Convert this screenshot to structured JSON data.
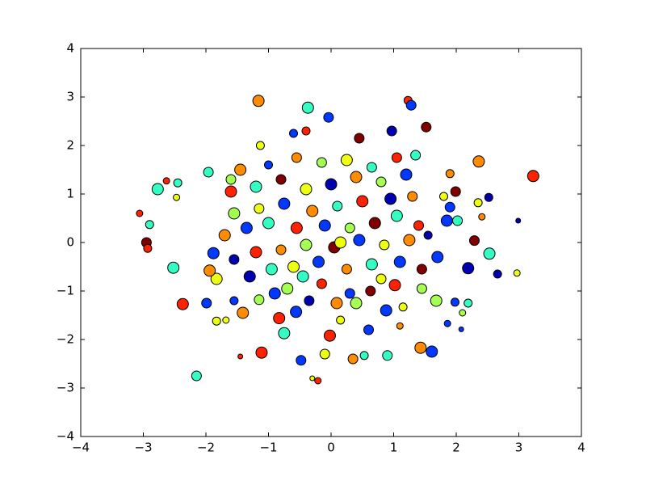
{
  "chart_data": {
    "type": "scatter",
    "x": [
      3.23,
      2.36,
      -1.16,
      -0.37,
      -0.04,
      1.23,
      1.28,
      1.52,
      -2.15,
      -0.21,
      -2.37,
      -2.52,
      -2.77,
      -3.06,
      -2.95,
      -2.93,
      -2.9,
      -2.63,
      -2.47,
      -2.45,
      2.97,
      2.66,
      2.53,
      2.19,
      1.61,
      1.43,
      -1.11,
      0.53,
      0.9,
      0.35,
      -0.48,
      -0.1,
      -1.83,
      -1.68,
      -1.99,
      -1.83,
      -1.88,
      -1.94,
      -1.96,
      2.99,
      2.02,
      1.85,
      1.9,
      1.99,
      1.9,
      1.8,
      2.29,
      2.41,
      2.52,
      2.35,
      -0.02,
      0.6,
      0.15,
      -0.83,
      -0.75,
      1.15,
      1.1,
      1.98,
      2.1,
      2.19,
      1.86,
      2.08,
      1.68,
      0.88,
      -1.45,
      -1.55,
      -1.41,
      -0.3,
      -0.56,
      0.09,
      -0.35,
      0.3,
      -1.15,
      -0.7,
      1.45,
      1.02,
      0.63,
      -0.15,
      -1.3,
      -0.95,
      -0.6,
      -0.2,
      0.25,
      0.65,
      1.1,
      1.45,
      1.7,
      -1.55,
      -1.2,
      -0.8,
      -0.4,
      0.05,
      0.45,
      0.85,
      1.25,
      1.55,
      -1.7,
      -1.35,
      -1.0,
      -0.55,
      -0.1,
      0.3,
      0.7,
      1.05,
      1.4,
      -1.55,
      -1.15,
      -0.75,
      -0.3,
      0.1,
      0.5,
      0.95,
      1.3,
      -1.6,
      -1.2,
      -0.8,
      -0.4,
      0.0,
      0.4,
      0.8,
      1.2,
      -1.45,
      -1.0,
      -0.55,
      -0.15,
      0.25,
      0.65,
      1.05,
      -1.13,
      -0.6,
      -0.4,
      0.45,
      0.97,
      1.35,
      -1.6,
      0.8,
      -0.45,
      0.15,
      -0.9,
      0.4
    ],
    "y": [
      1.37,
      1.67,
      2.92,
      2.78,
      2.58,
      2.93,
      2.83,
      2.38,
      -2.75,
      -2.85,
      -1.27,
      -0.52,
      1.1,
      0.6,
      0.0,
      -0.12,
      0.37,
      1.27,
      0.93,
      1.23,
      -0.63,
      -0.65,
      -0.23,
      -0.53,
      -2.25,
      -2.17,
      -2.27,
      -2.33,
      -2.33,
      -2.4,
      -2.43,
      -2.3,
      -1.62,
      -1.6,
      -1.25,
      -0.75,
      -0.22,
      -0.58,
      1.45,
      0.45,
      0.45,
      0.45,
      0.73,
      1.05,
      1.42,
      0.95,
      0.04,
      0.53,
      0.93,
      0.82,
      -1.92,
      -1.8,
      -1.6,
      -1.56,
      -1.87,
      -1.33,
      -1.72,
      -1.23,
      -1.45,
      -1.25,
      -1.67,
      -1.79,
      -1.2,
      -1.4,
      -2.35,
      -1.2,
      -1.45,
      -2.8,
      -1.43,
      -1.25,
      -1.2,
      -1.05,
      -1.18,
      -0.95,
      -0.95,
      -0.88,
      -1.0,
      -0.85,
      -0.7,
      -0.55,
      -0.5,
      -0.4,
      -0.55,
      -0.45,
      -0.4,
      -0.55,
      -0.3,
      -0.35,
      -0.2,
      -0.15,
      -0.05,
      -0.1,
      0.05,
      -0.05,
      0.05,
      0.15,
      0.15,
      0.3,
      0.4,
      0.3,
      0.35,
      0.3,
      0.4,
      0.55,
      0.35,
      0.6,
      0.7,
      0.8,
      0.65,
      0.75,
      0.85,
      0.9,
      0.95,
      1.05,
      1.15,
      1.3,
      1.1,
      1.2,
      1.35,
      1.25,
      1.4,
      1.5,
      1.6,
      1.75,
      1.65,
      1.7,
      1.55,
      1.75,
      2.0,
      2.25,
      2.3,
      2.15,
      2.3,
      1.8,
      1.3,
      -0.75,
      -0.7,
      0.0,
      -1.05,
      -1.25
    ],
    "sizes": [
      7,
      7,
      7,
      7,
      6,
      5,
      6,
      6,
      6,
      4,
      7,
      7,
      7,
      4,
      6,
      5,
      5,
      4,
      4,
      5,
      4,
      5,
      7,
      7,
      7,
      7,
      7,
      5,
      6,
      6,
      6,
      6,
      5,
      4,
      6,
      7,
      7,
      7,
      6,
      3,
      6,
      7,
      6,
      6,
      5,
      5,
      6,
      4,
      5,
      5,
      7,
      6,
      5,
      7,
      7,
      5,
      4,
      5,
      4,
      5,
      4,
      3,
      7,
      7,
      3,
      5,
      7,
      3,
      7,
      7,
      6,
      6,
      6,
      7,
      6,
      7,
      6,
      6,
      7,
      7,
      7,
      7,
      6,
      7,
      7,
      6,
      7,
      6,
      7,
      6,
      7,
      7,
      7,
      6,
      7,
      5,
      7,
      7,
      7,
      7,
      7,
      6,
      7,
      7,
      6,
      7,
      6,
      7,
      7,
      6,
      7,
      7,
      6,
      7,
      7,
      6,
      7,
      7,
      7,
      6,
      7,
      7,
      5,
      6,
      6,
      7,
      6,
      6,
      5,
      5,
      5,
      6,
      6,
      6,
      6,
      6,
      7,
      7,
      7,
      7
    ],
    "colors": [
      "#ff2200",
      "#ff8c00",
      "#ff8c00",
      "#33ffc4",
      "#0038ff",
      "#ff2200",
      "#0038ff",
      "#800000",
      "#33ffc4",
      "#ff2200",
      "#ff2200",
      "#33ffc4",
      "#33ffc4",
      "#ff2200",
      "#800000",
      "#ff2200",
      "#33ffc4",
      "#ff2200",
      "#eeff10",
      "#33ffc4",
      "#eeff10",
      "#0000b0",
      "#33ffc4",
      "#0000b0",
      "#0038ff",
      "#ff8c00",
      "#ff2200",
      "#33ffc4",
      "#33ffc4",
      "#ff8c00",
      "#0038ff",
      "#eeff10",
      "#eeff10",
      "#eeff10",
      "#0038ff",
      "#eeff10",
      "#0038ff",
      "#ff8c00",
      "#33ffc4",
      "#0000b0",
      "#33ffc4",
      "#0038ff",
      "#0038ff",
      "#800000",
      "#ff8c00",
      "#eeff10",
      "#800000",
      "#ff8c00",
      "#0000b0",
      "#eeff10",
      "#ff2200",
      "#0038ff",
      "#eeff10",
      "#ff2200",
      "#33ffc4",
      "#eeff10",
      "#ff8c00",
      "#0038ff",
      "#a4ff52",
      "#33ffc4",
      "#0038ff",
      "#0038ff",
      "#a4ff52",
      "#0038ff",
      "#ff2200",
      "#0038ff",
      "#ff8c00",
      "#eeff10",
      "#0038ff",
      "#ff8c00",
      "#0000b0",
      "#0038ff",
      "#a4ff52",
      "#a4ff52",
      "#a4ff52",
      "#ff2200",
      "#800000",
      "#ff2200",
      "#0000b0",
      "#33ffc4",
      "#eeff10",
      "#0038ff",
      "#ff8c00",
      "#33ffc4",
      "#0038ff",
      "#800000",
      "#0038ff",
      "#0000b0",
      "#ff2200",
      "#ff8c00",
      "#a4ff52",
      "#800000",
      "#0038ff",
      "#eeff10",
      "#ff8c00",
      "#0000b0",
      "#ff8c00",
      "#0038ff",
      "#33ffc4",
      "#ff2200",
      "#0038ff",
      "#a4ff52",
      "#800000",
      "#33ffc4",
      "#ff2200",
      "#a4ff52",
      "#eeff10",
      "#0038ff",
      "#ff8c00",
      "#33ffc4",
      "#ff2200",
      "#0000b0",
      "#ff8c00",
      "#ff2200",
      "#33ffc4",
      "#800000",
      "#eeff10",
      "#0000b0",
      "#ff8c00",
      "#a4ff52",
      "#0038ff",
      "#ff8c00",
      "#0038ff",
      "#ff8c00",
      "#a4ff52",
      "#eeff10",
      "#33ffc4",
      "#ff2200",
      "#eeff10",
      "#0038ff",
      "#ff2200",
      "#800000",
      "#0000b0",
      "#33ffc4",
      "#a4ff52",
      "#eeff10",
      "#33ffc4",
      "#eeff10",
      "#0038ff",
      "#a4ff52"
    ],
    "xlim": [
      -4,
      4
    ],
    "ylim": [
      -4,
      4
    ],
    "xticks": [
      {
        "value": -4,
        "label": "−4"
      },
      {
        "value": -3,
        "label": "−3"
      },
      {
        "value": -2,
        "label": "−2"
      },
      {
        "value": -1,
        "label": "−1"
      },
      0,
      1,
      2,
      3,
      4
    ],
    "yticks": [
      {
        "value": -4,
        "label": "−4"
      },
      {
        "value": -3,
        "label": "−3"
      },
      {
        "value": -2,
        "label": "−2"
      },
      {
        "value": -1,
        "label": "−1"
      },
      0,
      1,
      2,
      3,
      4
    ],
    "grid": false
  }
}
